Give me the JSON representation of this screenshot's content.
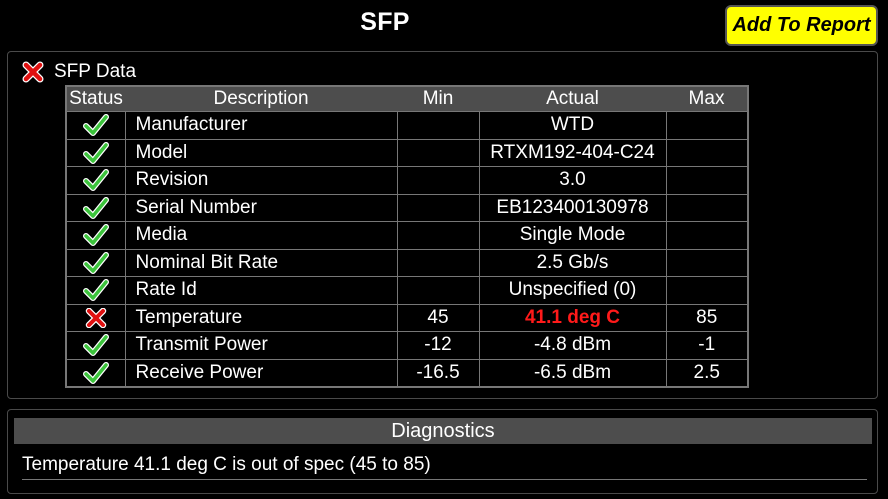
{
  "header": {
    "title": "SFP",
    "add_report_label": "Add To Report"
  },
  "sfp_section": {
    "label": "SFP Data",
    "status_icon": "x-icon",
    "columns": [
      "Status",
      "Description",
      "Min",
      "Actual",
      "Max"
    ],
    "rows": [
      {
        "status": "pass",
        "description": "Manufacturer",
        "min": "",
        "actual": "WTD",
        "max": ""
      },
      {
        "status": "pass",
        "description": "Model",
        "min": "",
        "actual": "RTXM192-404-C24",
        "max": ""
      },
      {
        "status": "pass",
        "description": "Revision",
        "min": "",
        "actual": "3.0",
        "max": ""
      },
      {
        "status": "pass",
        "description": "Serial Number",
        "min": "",
        "actual": "EB123400130978",
        "max": ""
      },
      {
        "status": "pass",
        "description": "Media",
        "min": "",
        "actual": "Single Mode",
        "max": ""
      },
      {
        "status": "pass",
        "description": "Nominal Bit Rate",
        "min": "",
        "actual": "2.5 Gb/s",
        "max": ""
      },
      {
        "status": "pass",
        "description": "Rate Id",
        "min": "",
        "actual": "Unspecified (0)",
        "max": ""
      },
      {
        "status": "fail",
        "description": "Temperature",
        "min": "45",
        "actual": "41.1 deg C",
        "max": "85"
      },
      {
        "status": "pass",
        "description": "Transmit Power",
        "min": "-12",
        "actual": "-4.8 dBm",
        "max": "-1"
      },
      {
        "status": "pass",
        "description": "Receive Power",
        "min": "-16.5",
        "actual": "-6.5 dBm",
        "max": "2.5"
      }
    ]
  },
  "diagnostics": {
    "header": "Diagnostics",
    "message": "Temperature 41.1 deg C is out of spec (45 to 85)"
  },
  "colors": {
    "background": "#000000",
    "button": "#ffff00",
    "pass": "#3cc43c",
    "fail": "#ff1a1a",
    "header_bg": "#4d4d4d"
  }
}
